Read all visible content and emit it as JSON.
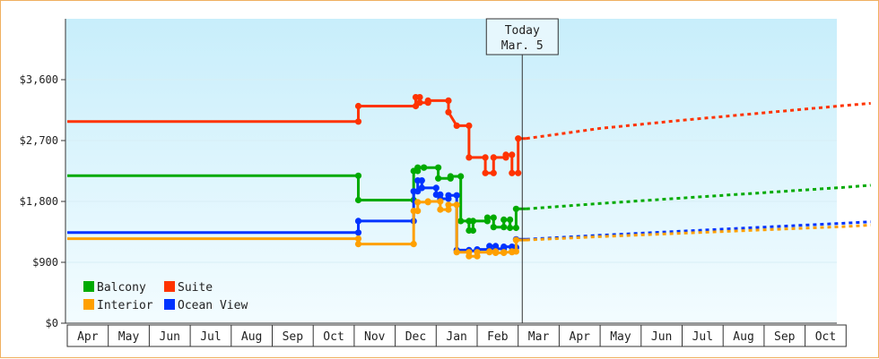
{
  "chart_data": {
    "type": "line",
    "title": "",
    "xlabel": "",
    "ylabel": "",
    "ylim": [
      0,
      4500
    ],
    "y_ticks": [
      0,
      900,
      1800,
      2700,
      3600
    ],
    "y_tick_labels": [
      "$0",
      "$900",
      "$1,800",
      "$2,700",
      "$3,600"
    ],
    "x_months": [
      "Apr",
      "May",
      "Jun",
      "Jul",
      "Aug",
      "Sep",
      "Oct",
      "Nov",
      "Dec",
      "Jan",
      "Feb",
      "Mar",
      "Apr",
      "May",
      "Jun",
      "Jul",
      "Aug",
      "Sep",
      "Oct"
    ],
    "x_unit": "months since first axis month (Apr)",
    "today": {
      "line1": "Today",
      "line2": "Mar. 5",
      "x": 11.1
    },
    "legend": {
      "placement": "bottom-left",
      "entries": [
        "Balcony",
        "Suite",
        "Interior",
        "Ocean View"
      ]
    },
    "series": [
      {
        "name": "Suite",
        "color": "#ff3300",
        "history": [
          [
            0,
            2980
          ],
          [
            7.1,
            2980
          ],
          [
            7.1,
            3210
          ],
          [
            8.5,
            3210
          ],
          [
            8.5,
            3340
          ],
          [
            8.6,
            3340
          ],
          [
            8.6,
            3260
          ],
          [
            8.8,
            3260
          ],
          [
            8.8,
            3290
          ],
          [
            9.3,
            3290
          ],
          [
            9.3,
            3120
          ],
          [
            9.5,
            2920
          ],
          [
            9.8,
            2920
          ],
          [
            9.8,
            2450
          ],
          [
            10.2,
            2450
          ],
          [
            10.2,
            2220
          ],
          [
            10.4,
            2220
          ],
          [
            10.4,
            2450
          ],
          [
            10.7,
            2450
          ],
          [
            10.7,
            2490
          ],
          [
            10.85,
            2490
          ],
          [
            10.85,
            2220
          ],
          [
            11.0,
            2220
          ],
          [
            11.0,
            2730
          ],
          [
            11.2,
            2730
          ]
        ],
        "forecast": [
          [
            11.2,
            2730
          ],
          [
            13,
            2880
          ],
          [
            15,
            3000
          ],
          [
            17,
            3110
          ],
          [
            19,
            3220
          ],
          [
            19.6,
            3250
          ]
        ]
      },
      {
        "name": "Balcony",
        "color": "#00aa00",
        "history": [
          [
            0,
            2180
          ],
          [
            7.1,
            2180
          ],
          [
            7.1,
            1820
          ],
          [
            8.45,
            1820
          ],
          [
            8.45,
            2250
          ],
          [
            8.55,
            2250
          ],
          [
            8.55,
            2300
          ],
          [
            8.7,
            2300
          ],
          [
            8.7,
            2300
          ],
          [
            9.05,
            2300
          ],
          [
            9.05,
            2140
          ],
          [
            9.35,
            2140
          ],
          [
            9.35,
            2170
          ],
          [
            9.6,
            2170
          ],
          [
            9.6,
            1510
          ],
          [
            9.8,
            1510
          ],
          [
            9.8,
            1370
          ],
          [
            9.9,
            1370
          ],
          [
            9.9,
            1510
          ],
          [
            10.25,
            1510
          ],
          [
            10.25,
            1560
          ],
          [
            10.4,
            1560
          ],
          [
            10.4,
            1420
          ],
          [
            10.65,
            1420
          ],
          [
            10.65,
            1530
          ],
          [
            10.8,
            1530
          ],
          [
            10.8,
            1410
          ],
          [
            10.95,
            1410
          ],
          [
            10.95,
            1690
          ],
          [
            11.2,
            1690
          ]
        ],
        "forecast": [
          [
            11.2,
            1690
          ],
          [
            13,
            1770
          ],
          [
            15,
            1850
          ],
          [
            17,
            1930
          ],
          [
            19,
            2010
          ],
          [
            19.6,
            2040
          ]
        ]
      },
      {
        "name": "Ocean View",
        "color": "#0033ff",
        "history": [
          [
            0,
            1340
          ],
          [
            7.1,
            1340
          ],
          [
            7.1,
            1510
          ],
          [
            8.45,
            1510
          ],
          [
            8.45,
            1950
          ],
          [
            8.55,
            1950
          ],
          [
            8.55,
            2110
          ],
          [
            8.65,
            2110
          ],
          [
            8.65,
            2000
          ],
          [
            9.0,
            2000
          ],
          [
            9.0,
            1900
          ],
          [
            9.1,
            1900
          ],
          [
            9.1,
            1840
          ],
          [
            9.3,
            1840
          ],
          [
            9.3,
            1890
          ],
          [
            9.5,
            1890
          ],
          [
            9.5,
            1080
          ],
          [
            9.8,
            1080
          ],
          [
            9.8,
            1070
          ],
          [
            10.0,
            1070
          ],
          [
            10.0,
            1090
          ],
          [
            10.3,
            1090
          ],
          [
            10.3,
            1140
          ],
          [
            10.45,
            1140
          ],
          [
            10.45,
            1100
          ],
          [
            10.65,
            1100
          ],
          [
            10.65,
            1130
          ],
          [
            10.85,
            1130
          ],
          [
            10.85,
            1120
          ],
          [
            10.95,
            1120
          ],
          [
            10.95,
            1240
          ],
          [
            11.2,
            1240
          ]
        ],
        "forecast": [
          [
            11.2,
            1240
          ],
          [
            13,
            1300
          ],
          [
            15,
            1360
          ],
          [
            17,
            1420
          ],
          [
            19,
            1480
          ],
          [
            19.6,
            1500
          ]
        ]
      },
      {
        "name": "Interior",
        "color": "#ffa000",
        "history": [
          [
            0,
            1250
          ],
          [
            7.1,
            1250
          ],
          [
            7.1,
            1170
          ],
          [
            8.45,
            1170
          ],
          [
            8.45,
            1660
          ],
          [
            8.55,
            1660
          ],
          [
            8.55,
            1790
          ],
          [
            8.8,
            1790
          ],
          [
            8.8,
            1800
          ],
          [
            9.1,
            1800
          ],
          [
            9.1,
            1680
          ],
          [
            9.3,
            1680
          ],
          [
            9.3,
            1750
          ],
          [
            9.5,
            1750
          ],
          [
            9.5,
            1050
          ],
          [
            9.8,
            1050
          ],
          [
            9.8,
            990
          ],
          [
            10.0,
            990
          ],
          [
            10.0,
            1050
          ],
          [
            10.3,
            1050
          ],
          [
            10.3,
            1060
          ],
          [
            10.45,
            1060
          ],
          [
            10.45,
            1040
          ],
          [
            10.65,
            1040
          ],
          [
            10.65,
            1050
          ],
          [
            10.85,
            1050
          ],
          [
            10.85,
            1060
          ],
          [
            10.95,
            1060
          ],
          [
            10.95,
            1230
          ],
          [
            11.2,
            1230
          ]
        ],
        "forecast": [
          [
            11.2,
            1230
          ],
          [
            13,
            1280
          ],
          [
            15,
            1330
          ],
          [
            17,
            1380
          ],
          [
            19,
            1430
          ],
          [
            19.6,
            1450
          ]
        ]
      }
    ]
  }
}
